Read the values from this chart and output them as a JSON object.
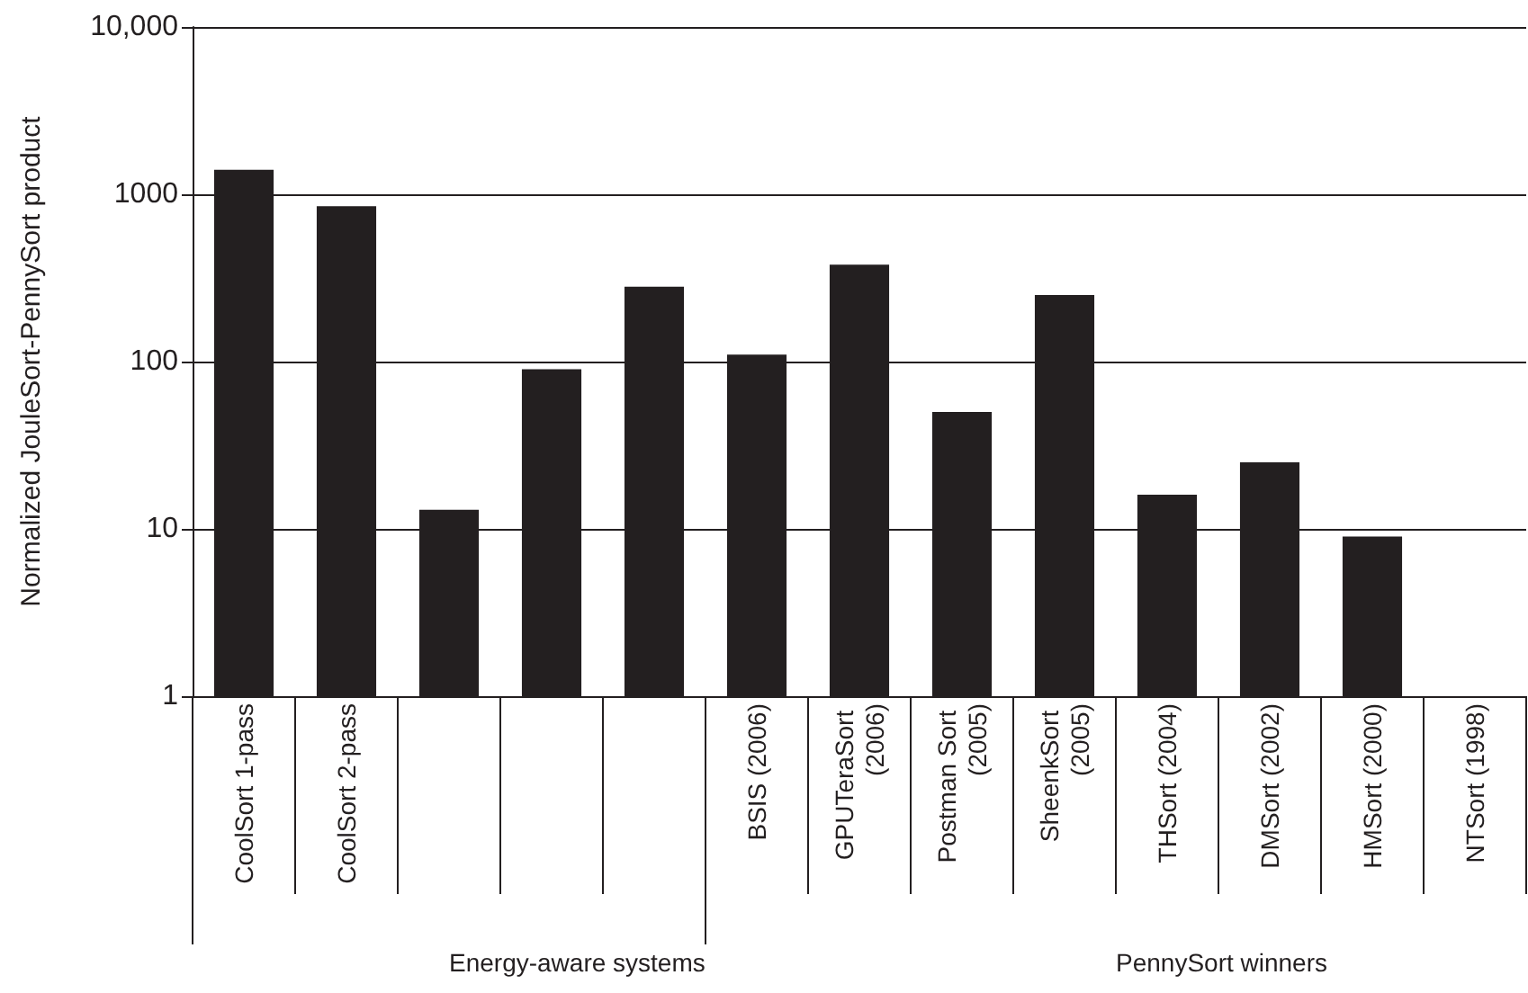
{
  "chart_data": {
    "type": "bar",
    "ylabel": "Normalized JouleSort-PennySort product",
    "categories": [
      "CoolSort 1-pass",
      "CoolSort 2-pass",
      null,
      null,
      null,
      "BSIS (2006)",
      "GPUTeraSort (2006)",
      "Postman Sort (2005)",
      "SheenkSort (2005)",
      "THSort (2004)",
      "DMSort (2002)",
      "HMSort (2000)",
      "NTSort (1998)"
    ],
    "values": [
      1400,
      850,
      13,
      90,
      280,
      110,
      380,
      50,
      250,
      16,
      25,
      9,
      null
    ],
    "color": "#231f20",
    "log": "y",
    "ylim": [
      1,
      10000
    ],
    "yticks": [
      1,
      10,
      100,
      1000,
      {
        "value": 10000,
        "label": "10,000"
      }
    ],
    "grid": "y",
    "annotations": [
      "Energy-aware systems",
      "PennySort winners"
    ]
  }
}
